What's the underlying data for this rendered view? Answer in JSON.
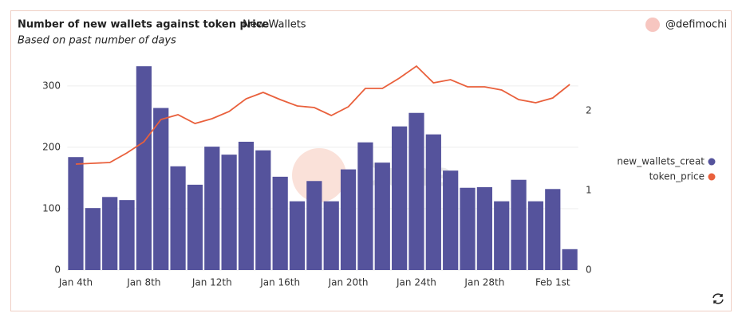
{
  "header": {
    "title": "Number of new wallets against token price",
    "tab": "New Wallets",
    "subtitle": "Based on past number of days",
    "author": "@defimochi"
  },
  "watermark": "Dune",
  "chart_data": {
    "type": "bar-line",
    "categories": [
      "Jan 4th",
      null,
      null,
      null,
      "Jan 8th",
      null,
      null,
      null,
      "Jan 12th",
      null,
      null,
      null,
      "Jan 16th",
      null,
      null,
      null,
      "Jan 20th",
      null,
      null,
      null,
      "Jan 24th",
      null,
      null,
      null,
      "Jan 28th",
      null,
      null,
      null,
      "Feb 1st",
      null
    ],
    "series": [
      {
        "name": "new_wallets_creat",
        "type": "bar",
        "color": "#55539c",
        "values": [
          184,
          101,
          119,
          114,
          332,
          264,
          169,
          139,
          201,
          188,
          209,
          195,
          152,
          112,
          145,
          112,
          164,
          208,
          175,
          234,
          256,
          221,
          162,
          134,
          135,
          112,
          147,
          112,
          132,
          34
        ]
      },
      {
        "name": "token_price",
        "type": "line",
        "axis": "y2",
        "color": "#e9603c",
        "values": [
          1.33,
          1.34,
          1.35,
          1.47,
          1.61,
          1.89,
          1.95,
          1.84,
          1.9,
          1.99,
          2.15,
          2.23,
          2.14,
          2.06,
          2.04,
          1.94,
          2.05,
          2.28,
          2.28,
          2.41,
          2.56,
          2.35,
          2.39,
          2.3,
          2.3,
          2.26,
          2.14,
          2.1,
          2.16,
          2.33
        ]
      }
    ],
    "ylim": [
      0,
      340
    ],
    "yticks": [
      0,
      100,
      200,
      300
    ],
    "y2lim": [
      0,
      2.62
    ],
    "y2ticks": [
      0,
      1,
      2
    ],
    "grid": true,
    "legend": "right"
  }
}
